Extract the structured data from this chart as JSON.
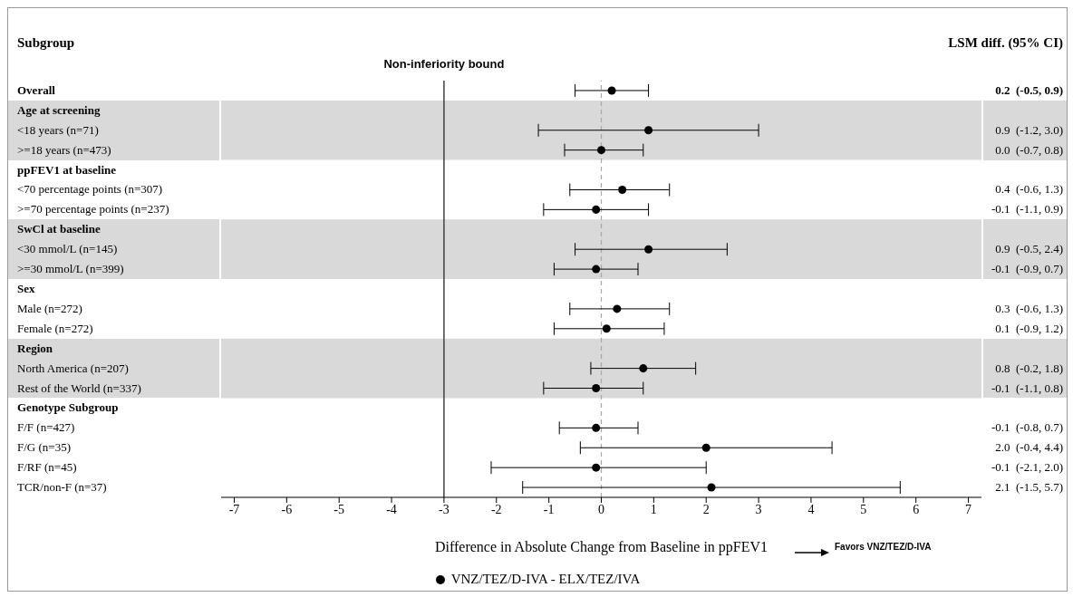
{
  "chart_data": {
    "type": "scatter",
    "orientation": "horizontal",
    "annotations": [
      "Subgroup",
      "LSM diff. (95% CI)",
      "Favors VNZ/TEZ/D-IVA"
    ],
    "xlabel": "Difference in Absolute Change from Baseline in ppFEV1",
    "categories": [
      "Overall",
      "Age at screening",
      "<18 years  (n=71)",
      ">=18 years  (n=473)",
      "ppFEV1 at baseline",
      "<70 percentage points  (n=307)",
      ">=70 percentage points  (n=237)",
      "SwCl at baseline",
      "<30 mmol/L  (n=145)",
      ">=30 mmol/L  (n=399)",
      "Sex",
      "Male  (n=272)",
      "Female  (n=272)",
      "Region",
      "North America  (n=207)",
      "Rest of the World  (n=337)",
      "Genotype Subgroup",
      "F/F  (n=427)",
      "F/G  (n=35)",
      "F/RF  (n=45)",
      "TCR/non-F  (n=37)"
    ],
    "series": [
      {
        "name": "VNZ/TEZ/D-IVA - ELX/TEZ/IVA",
        "color": "#000000",
        "values": [
          0.2,
          null,
          0.9,
          0.0,
          null,
          0.4,
          -0.1,
          null,
          0.9,
          -0.1,
          null,
          0.3,
          0.1,
          null,
          0.8,
          -0.1,
          null,
          -0.1,
          2.0,
          -0.1,
          2.1
        ],
        "errors": [
          [
            -0.5,
            0.9
          ],
          null,
          [
            -1.2,
            3.0
          ],
          [
            -0.7,
            0.8
          ],
          null,
          [
            -0.6,
            1.3
          ],
          [
            -1.1,
            0.9
          ],
          null,
          [
            -0.5,
            2.4
          ],
          [
            -0.9,
            0.7
          ],
          null,
          [
            -0.6,
            1.3
          ],
          [
            -0.9,
            1.2
          ],
          null,
          [
            -0.2,
            1.8
          ],
          [
            -1.1,
            0.8
          ],
          null,
          [
            -0.8,
            0.7
          ],
          [
            -0.4,
            4.4
          ],
          [
            -2.1,
            2.0
          ],
          [
            -1.5,
            5.7
          ]
        ],
        "value_labels": [
          "0.2  (-0.5, 0.9)",
          null,
          "0.9  (-1.2, 3.0)",
          "0.0  (-0.7, 0.8)",
          null,
          "0.4  (-0.6, 1.3)",
          "-0.1  (-1.1, 0.9)",
          null,
          "0.9  (-0.5, 2.4)",
          "-0.1  (-0.9, 0.7)",
          null,
          "0.3  (-0.6, 1.3)",
          "0.1  (-0.9, 1.2)",
          null,
          "0.8  (-0.2, 1.8)",
          "-0.1  (-1.1, 0.8)",
          null,
          "-0.1  (-0.8, 0.7)",
          "2.0  (-0.4, 4.4)",
          "-0.1  (-2.1, 2.0)",
          "2.1  (-1.5, 5.7)"
        ]
      }
    ],
    "xlim": [
      -7.25,
      7.25
    ],
    "xticks": [
      -7,
      -6,
      -5,
      -4,
      -3,
      -2,
      -1,
      0,
      1,
      2,
      3,
      4,
      5,
      6,
      7
    ],
    "ref_lines": [
      {
        "axis": "x",
        "value": -3,
        "label": "Non-inferiority bound",
        "color": "#404040",
        "line_style": "solid"
      },
      {
        "axis": "x",
        "value": 0,
        "label": null,
        "color": "#a6a6a6",
        "line_style": "dashed"
      }
    ],
    "bands": [
      {
        "axis": "y",
        "from": "Age at screening",
        "to": ">=18 years  (n=473)",
        "color": "#d9d9d9"
      },
      {
        "axis": "y",
        "from": "SwCl at baseline",
        "to": ">=30 mmol/L  (n=399)",
        "color": "#d9d9d9"
      },
      {
        "axis": "y",
        "from": "Region",
        "to": "Rest of the World  (n=337)",
        "color": "#d9d9d9"
      }
    ],
    "marker": "circle",
    "grid": false,
    "legend": "bottom"
  }
}
